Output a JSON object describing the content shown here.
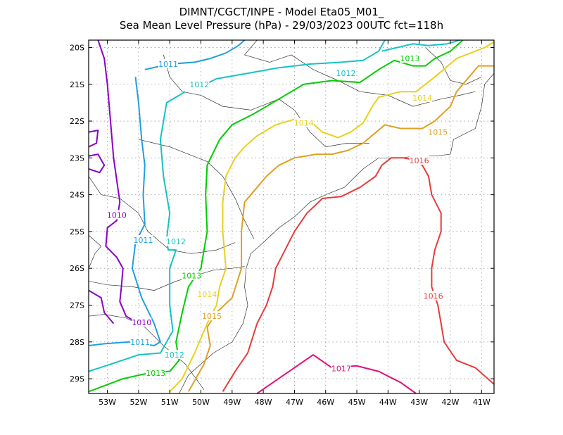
{
  "chart_data": {
    "type": "contour-map",
    "title": "DIMNT/CGCT/INPE -  Model Eta05_M01_",
    "subtitle": "Sea Mean Level Pressure (hPa) - 29/03/2023 00UTC fct=118h",
    "xlim": [
      -53.6,
      -40.6
    ],
    "ylim": [
      -29.4,
      -19.8
    ],
    "grid": true,
    "x_ticks": [
      {
        "value": -53,
        "label": "53W"
      },
      {
        "value": -52,
        "label": "52W"
      },
      {
        "value": -51,
        "label": "51W"
      },
      {
        "value": -50,
        "label": "50W"
      },
      {
        "value": -49,
        "label": "49W"
      },
      {
        "value": -48,
        "label": "48W"
      },
      {
        "value": -47,
        "label": "47W"
      },
      {
        "value": -46,
        "label": "46W"
      },
      {
        "value": -45,
        "label": "45W"
      },
      {
        "value": -44,
        "label": "44W"
      },
      {
        "value": -43,
        "label": "43W"
      },
      {
        "value": -42,
        "label": "42W"
      },
      {
        "value": -41,
        "label": "41W"
      }
    ],
    "y_ticks": [
      {
        "value": -20,
        "label": "20S"
      },
      {
        "value": -21,
        "label": "21S"
      },
      {
        "value": -22,
        "label": "22S"
      },
      {
        "value": -23,
        "label": "23S"
      },
      {
        "value": -24,
        "label": "24S"
      },
      {
        "value": -25,
        "label": "25S"
      },
      {
        "value": -26,
        "label": "26S"
      },
      {
        "value": -27,
        "label": "27S"
      },
      {
        "value": -28,
        "label": "28S"
      },
      {
        "value": -29,
        "label": "29S"
      }
    ],
    "series": [
      {
        "name": "1010",
        "color": "#8a00c8",
        "lines": [
          [
            [
              -53.3,
              -19.8
            ],
            [
              -53.1,
              -20.3
            ],
            [
              -53.0,
              -21.0
            ],
            [
              -52.9,
              -22.0
            ],
            [
              -52.8,
              -23.0
            ],
            [
              -52.6,
              -24.2
            ],
            [
              -52.7,
              -24.7
            ],
            [
              -53.0,
              -24.9
            ],
            [
              -53.05,
              -25.4
            ],
            [
              -52.7,
              -25.7
            ],
            [
              -52.5,
              -26.0
            ],
            [
              -52.55,
              -26.5
            ],
            [
              -52.6,
              -26.9
            ],
            [
              -52.4,
              -27.3
            ],
            [
              -52.0,
              -27.5
            ],
            [
              -51.75,
              -27.55
            ]
          ],
          [
            [
              -53.6,
              -22.3
            ],
            [
              -53.3,
              -22.25
            ],
            [
              -53.35,
              -22.6
            ],
            [
              -53.6,
              -22.7
            ]
          ],
          [
            [
              -53.6,
              -22.95
            ],
            [
              -53.3,
              -22.9
            ],
            [
              -53.1,
              -23.2
            ],
            [
              -53.25,
              -23.4
            ],
            [
              -53.6,
              -23.3
            ]
          ],
          [
            [
              -53.6,
              -26.6
            ],
            [
              -53.2,
              -26.8
            ],
            [
              -53.1,
              -27.2
            ],
            [
              -52.8,
              -27.5
            ]
          ]
        ],
        "labels": [
          {
            "text": "1010",
            "x": -52.7,
            "y": -24.55
          },
          {
            "text": "1010",
            "x": -51.9,
            "y": -27.47
          }
        ]
      },
      {
        "name": "1011",
        "color": "#1f9fe0",
        "lines": [
          [
            [
              -51.8,
              -20.6
            ],
            [
              -51.0,
              -20.45
            ],
            [
              -50.2,
              -20.4
            ],
            [
              -49.7,
              -20.3
            ],
            [
              -49.2,
              -20.15
            ],
            [
              -48.8,
              -19.95
            ],
            [
              -48.6,
              -19.8
            ]
          ],
          [
            [
              -52.1,
              -20.8
            ],
            [
              -52.0,
              -21.5
            ],
            [
              -51.9,
              -22.5
            ],
            [
              -51.8,
              -23.2
            ],
            [
              -51.85,
              -24.0
            ],
            [
              -51.8,
              -24.8
            ],
            [
              -52.1,
              -25.3
            ],
            [
              -52.2,
              -26.0
            ],
            [
              -51.9,
              -26.8
            ],
            [
              -51.5,
              -27.5
            ],
            [
              -51.3,
              -28.0
            ],
            [
              -51.5,
              -28.1
            ],
            [
              -52.3,
              -28.0
            ],
            [
              -53.1,
              -28.05
            ],
            [
              -53.6,
              -28.1
            ]
          ]
        ],
        "labels": [
          {
            "text": "1011",
            "x": -51.05,
            "y": -20.45
          },
          {
            "text": "1011",
            "x": -51.85,
            "y": -25.23
          },
          {
            "text": "1011",
            "x": -51.95,
            "y": -28.0
          }
        ]
      },
      {
        "name": "1012",
        "color": "#15c3c3",
        "lines": [
          [
            [
              -50.1,
              -21.1
            ],
            [
              -49.5,
              -20.85
            ],
            [
              -48.5,
              -20.7
            ],
            [
              -47.5,
              -20.55
            ],
            [
              -46.5,
              -20.45
            ],
            [
              -45.5,
              -20.4
            ],
            [
              -44.8,
              -20.35
            ],
            [
              -44.3,
              -20.1
            ],
            [
              -44.1,
              -19.8
            ]
          ],
          [
            [
              -50.5,
              -21.2
            ],
            [
              -51.1,
              -21.5
            ],
            [
              -51.3,
              -22.5
            ],
            [
              -51.2,
              -23.5
            ],
            [
              -51.0,
              -24.5
            ],
            [
              -51.1,
              -25.2
            ],
            [
              -51.05,
              -25.5
            ],
            [
              -50.8,
              -25.5
            ],
            [
              -51.0,
              -26.0
            ],
            [
              -51.0,
              -27.0
            ],
            [
              -50.9,
              -27.7
            ],
            [
              -51.3,
              -28.3
            ],
            [
              -52.0,
              -28.35
            ],
            [
              -52.7,
              -28.55
            ],
            [
              -53.6,
              -28.8
            ]
          ],
          [
            [
              -44.2,
              -20.1
            ],
            [
              -43.7,
              -20.0
            ],
            [
              -43.2,
              -19.9
            ],
            [
              -42.7,
              -19.95
            ],
            [
              -42.1,
              -19.9
            ],
            [
              -41.7,
              -19.8
            ]
          ]
        ],
        "labels": [
          {
            "text": "1012",
            "x": -50.05,
            "y": -21.0
          },
          {
            "text": "1012",
            "x": -50.8,
            "y": -25.27
          },
          {
            "text": "1012",
            "x": -50.85,
            "y": -28.35
          },
          {
            "text": "1012",
            "x": -45.35,
            "y": -20.7
          }
        ]
      },
      {
        "name": "1013",
        "color": "#00cc00",
        "lines": [
          [
            [
              -53.6,
              -29.35
            ],
            [
              -52.5,
              -29.0
            ],
            [
              -51.7,
              -28.85
            ],
            [
              -51.0,
              -28.8
            ],
            [
              -50.7,
              -28.5
            ],
            [
              -50.8,
              -28.0
            ],
            [
              -50.6,
              -27.2
            ],
            [
              -50.4,
              -26.5
            ],
            [
              -50.0,
              -26.0
            ],
            [
              -49.8,
              -25.0
            ],
            [
              -49.85,
              -24.0
            ],
            [
              -49.8,
              -23.2
            ],
            [
              -49.4,
              -22.5
            ],
            [
              -49.0,
              -22.1
            ],
            [
              -48.3,
              -21.8
            ],
            [
              -47.5,
              -21.4
            ],
            [
              -46.7,
              -21.0
            ],
            [
              -45.8,
              -20.9
            ],
            [
              -44.9,
              -20.95
            ],
            [
              -44.3,
              -20.6
            ],
            [
              -43.8,
              -20.35
            ],
            [
              -43.2,
              -20.5
            ],
            [
              -42.8,
              -20.5
            ],
            [
              -42.5,
              -20.3
            ],
            [
              -42.0,
              -20.1
            ],
            [
              -41.6,
              -19.8
            ]
          ]
        ],
        "labels": [
          {
            "text": "1013",
            "x": -50.3,
            "y": -26.2
          },
          {
            "text": "1013",
            "x": -51.45,
            "y": -28.85
          },
          {
            "text": "1013",
            "x": -43.3,
            "y": -20.3
          }
        ]
      },
      {
        "name": "1014",
        "color": "#e8d020",
        "lines": [
          [
            [
              -51.0,
              -29.35
            ],
            [
              -50.6,
              -29.0
            ],
            [
              -50.2,
              -28.3
            ],
            [
              -49.8,
              -27.5
            ],
            [
              -49.5,
              -27.0
            ],
            [
              -49.4,
              -26.5
            ],
            [
              -49.2,
              -26.0
            ],
            [
              -49.3,
              -25.0
            ],
            [
              -49.3,
              -24.2
            ],
            [
              -49.2,
              -23.5
            ],
            [
              -48.9,
              -23.0
            ],
            [
              -48.6,
              -22.7
            ],
            [
              -48.2,
              -22.4
            ],
            [
              -47.6,
              -22.1
            ],
            [
              -47.0,
              -21.95
            ],
            [
              -46.5,
              -22.0
            ],
            [
              -46.1,
              -22.3
            ],
            [
              -45.6,
              -22.45
            ],
            [
              -45.2,
              -22.3
            ],
            [
              -44.8,
              -22.05
            ],
            [
              -44.5,
              -21.6
            ],
            [
              -44.3,
              -21.35
            ],
            [
              -43.6,
              -21.2
            ],
            [
              -43.1,
              -21.2
            ],
            [
              -42.5,
              -20.8
            ],
            [
              -41.8,
              -20.3
            ],
            [
              -40.9,
              -20.0
            ],
            [
              -40.6,
              -19.85
            ]
          ]
        ],
        "labels": [
          {
            "text": "1014",
            "x": -49.8,
            "y": -26.7
          },
          {
            "text": "1014",
            "x": -46.7,
            "y": -22.05
          },
          {
            "text": "1014",
            "x": -42.9,
            "y": -21.37
          }
        ]
      },
      {
        "name": "1015",
        "color": "#e0a020",
        "lines": [
          [
            [
              -50.4,
              -29.35
            ],
            [
              -49.9,
              -28.6
            ],
            [
              -49.7,
              -28.1
            ],
            [
              -49.8,
              -27.6
            ],
            [
              -49.5,
              -27.2
            ],
            [
              -49.0,
              -26.8
            ],
            [
              -48.7,
              -26.0
            ],
            [
              -48.7,
              -25.0
            ],
            [
              -48.6,
              -24.2
            ],
            [
              -48.2,
              -23.8
            ],
            [
              -47.9,
              -23.5
            ],
            [
              -47.5,
              -23.2
            ],
            [
              -47.0,
              -23.0
            ],
            [
              -46.3,
              -22.9
            ],
            [
              -45.8,
              -22.9
            ],
            [
              -45.3,
              -22.8
            ],
            [
              -44.8,
              -22.6
            ],
            [
              -44.1,
              -22.1
            ],
            [
              -43.6,
              -22.2
            ],
            [
              -42.9,
              -22.2
            ],
            [
              -42.5,
              -22.0
            ],
            [
              -42.0,
              -21.6
            ],
            [
              -41.8,
              -21.2
            ],
            [
              -41.4,
              -20.8
            ],
            [
              -41.1,
              -20.5
            ],
            [
              -40.6,
              -20.5
            ]
          ]
        ],
        "labels": [
          {
            "text": "1015",
            "x": -49.65,
            "y": -27.3
          },
          {
            "text": "1015",
            "x": -42.4,
            "y": -22.3
          }
        ]
      },
      {
        "name": "1016",
        "color": "#e63c3c",
        "lines": [
          [
            [
              -49.3,
              -29.35
            ],
            [
              -48.9,
              -28.8
            ],
            [
              -48.5,
              -28.3
            ],
            [
              -48.2,
              -27.5
            ],
            [
              -47.9,
              -27.0
            ],
            [
              -47.7,
              -26.5
            ],
            [
              -47.6,
              -26.0
            ],
            [
              -47.3,
              -25.5
            ],
            [
              -47.0,
              -25.0
            ],
            [
              -46.6,
              -24.5
            ],
            [
              -46.1,
              -24.1
            ],
            [
              -45.5,
              -24.05
            ],
            [
              -44.9,
              -23.8
            ],
            [
              -44.4,
              -23.5
            ],
            [
              -44.2,
              -23.2
            ],
            [
              -43.9,
              -23.0
            ],
            [
              -43.5,
              -23.0
            ],
            [
              -43.2,
              -23.05
            ],
            [
              -42.9,
              -23.2
            ],
            [
              -42.7,
              -23.5
            ],
            [
              -42.6,
              -24.0
            ],
            [
              -42.3,
              -24.5
            ],
            [
              -42.3,
              -25.0
            ],
            [
              -42.5,
              -25.5
            ],
            [
              -42.6,
              -26.0
            ],
            [
              -42.6,
              -26.5
            ],
            [
              -42.4,
              -27.0
            ],
            [
              -42.3,
              -27.5
            ],
            [
              -42.2,
              -28.0
            ],
            [
              -41.8,
              -28.5
            ],
            [
              -41.2,
              -28.7
            ],
            [
              -40.6,
              -29.15
            ]
          ]
        ],
        "labels": [
          {
            "text": "1016",
            "x": -43.0,
            "y": -23.07
          },
          {
            "text": "1016",
            "x": -42.55,
            "y": -26.75
          }
        ]
      },
      {
        "name": "1017",
        "color": "#e0107a",
        "lines": [
          [
            [
              -48.2,
              -29.4
            ],
            [
              -47.6,
              -29.05
            ],
            [
              -47.0,
              -28.7
            ],
            [
              -46.4,
              -28.35
            ],
            [
              -45.8,
              -28.7
            ],
            [
              -45.0,
              -28.65
            ],
            [
              -44.3,
              -28.8
            ],
            [
              -43.6,
              -29.1
            ],
            [
              -43.1,
              -29.4
            ]
          ]
        ],
        "labels": [
          {
            "text": "1017",
            "x": -45.5,
            "y": -28.72
          }
        ]
      }
    ]
  }
}
